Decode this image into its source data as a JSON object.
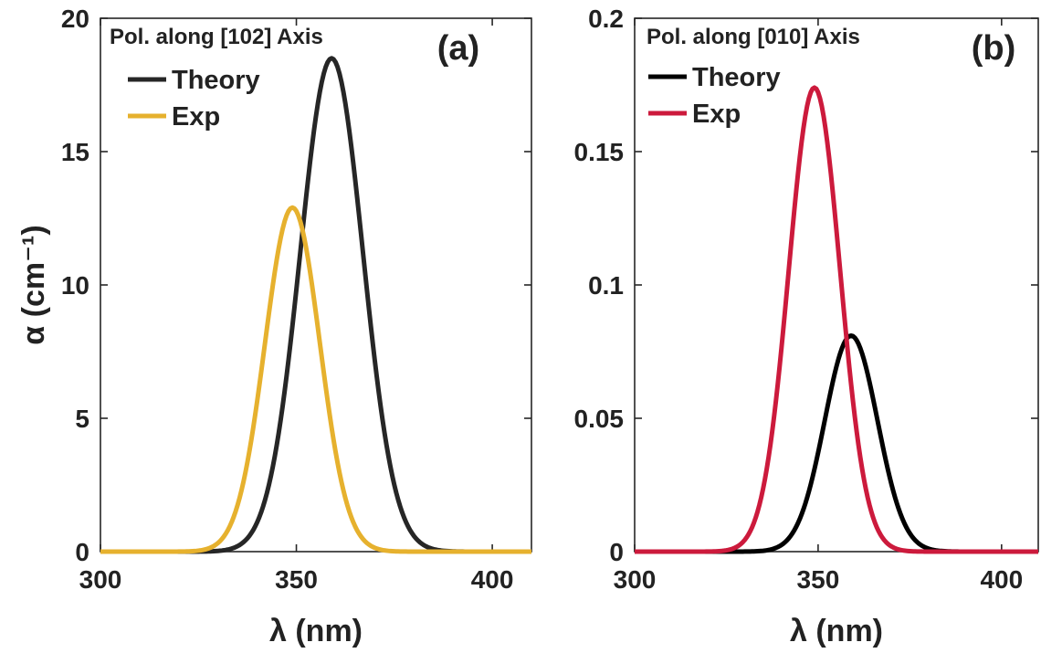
{
  "chart_data": [
    {
      "type": "line",
      "panel_label": "(a)",
      "annotation": "Pol. along [102] Axis",
      "xlabel": "λ (nm)",
      "ylabel": "α (cm⁻¹)",
      "xlim": [
        300,
        410
      ],
      "ylim": [
        0,
        20
      ],
      "xticks": [
        300,
        350,
        400
      ],
      "xtick_labels": [
        "300",
        "350",
        "400"
      ],
      "yticks": [
        0,
        5,
        10,
        15,
        20
      ],
      "ytick_labels": [
        "0",
        "5",
        "10",
        "15",
        "20"
      ],
      "legend_position": "top-left",
      "grid": false,
      "series": [
        {
          "name": "Theory",
          "color": "#262626",
          "peak_x": 359,
          "peak_y": 18.5,
          "sigma": 8.0
        },
        {
          "name": "Exp",
          "color": "#e6b12e",
          "peak_x": 349,
          "peak_y": 12.9,
          "sigma": 7.0
        }
      ]
    },
    {
      "type": "line",
      "panel_label": "(b)",
      "annotation": "Pol. along [010] Axis",
      "xlabel": "λ (nm)",
      "ylabel": "",
      "xlim": [
        300,
        410
      ],
      "ylim": [
        0,
        0.2
      ],
      "xticks": [
        300,
        350,
        400
      ],
      "xtick_labels": [
        "300",
        "350",
        "400"
      ],
      "yticks": [
        0,
        0.05,
        0.1,
        0.15,
        0.2
      ],
      "ytick_labels": [
        "0",
        "0.05",
        "0.1",
        "0.15",
        "0.2"
      ],
      "legend_position": "top-left",
      "grid": false,
      "series": [
        {
          "name": "Theory",
          "color": "#000000",
          "peak_x": 359,
          "peak_y": 0.081,
          "sigma": 7.2
        },
        {
          "name": "Exp",
          "color": "#cc1a3c",
          "peak_x": 349,
          "peak_y": 0.174,
          "sigma": 7.0
        }
      ]
    }
  ]
}
